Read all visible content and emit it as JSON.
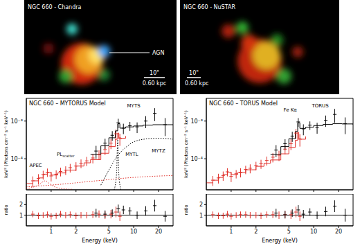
{
  "images": [
    {
      "title": "NGC 660 - Chandra",
      "label": "AGN",
      "scale_bar": [
        "10\"",
        "0.60 kpc"
      ]
    },
    {
      "title": "NGC 660 - NuSTAR",
      "scale_bar": [
        "10\"",
        "0.60 kpc"
      ]
    }
  ],
  "chart_data": [
    {
      "type": "scatter",
      "title": "NGC 660 – MYTORUS Model",
      "y_label": "keV² (Photons cm⁻² s⁻¹ keV⁻¹)",
      "log": true,
      "tick_labels": "y",
      "xlim": [
        0.5,
        30
      ],
      "xticks": [
        1,
        2,
        5,
        10,
        20
      ],
      "ylim": [
        1.5e-05,
        0.004
      ],
      "yticks": [
        {
          "value": 0.0001,
          "label": "10⁻⁴"
        },
        {
          "value": 0.001,
          "label": "10⁻³"
        }
      ],
      "series": [
        {
          "type": "scatter",
          "color": "#e0302a",
          "marker": "cross",
          "x": [
            0.6,
            0.7,
            0.8,
            0.9,
            1.0,
            1.15,
            1.3,
            1.5,
            1.7,
            2.0,
            2.3,
            2.7,
            3.2,
            3.8,
            4.5,
            5.3,
            6.1,
            6.8
          ],
          "values": [
            2.6e-05,
            3e-05,
            3.8e-05,
            4.4e-05,
            3.5e-05,
            3.9e-05,
            4.6e-05,
            5e-05,
            5.8e-05,
            6.4e-05,
            7.6e-05,
            8.8e-05,
            0.000105,
            0.00013,
            0.000175,
            0.00026,
            0.00046,
            0.00034
          ],
          "y_err": [
            8e-06,
            9e-06,
            1e-05,
            1.1e-05,
            1e-05,
            1e-05,
            1.2e-05,
            1.3e-05,
            1.5e-05,
            1.7e-05,
            2e-05,
            2.4e-05,
            3e-05,
            3.8e-05,
            5e-05,
            8e-05,
            0.00014,
            0.00012
          ]
        },
        {
          "type": "scatter",
          "color": "#000000",
          "marker": "cross",
          "x": [
            3.5,
            4.5,
            5.5,
            6.5,
            7.5,
            9,
            11,
            14,
            18,
            24
          ],
          "values": [
            0.00016,
            0.00026,
            0.00042,
            0.0009,
            0.00065,
            0.00075,
            0.0007,
            0.001,
            0.0016,
            0.0008
          ],
          "y_err": [
            6e-05,
            8e-05,
            0.00012,
            0.00025,
            0.0002,
            0.0002,
            0.00022,
            0.00035,
            0.0006,
            0.0004
          ]
        },
        {
          "type": "step",
          "line_style": "solid",
          "color": "#e0302a",
          "x": [
            0.5,
            0.6,
            0.7,
            0.8,
            0.9,
            1.0,
            1.2,
            1.5,
            2.0,
            2.5,
            3,
            4,
            5,
            6,
            6.4,
            6.6,
            7,
            8
          ],
          "values": [
            2.2e-05,
            2.6e-05,
            3.1e-05,
            3.9e-05,
            4.3e-05,
            3.7e-05,
            4.2e-05,
            5e-05,
            6.4e-05,
            7.8e-05,
            9.5e-05,
            0.00014,
            0.00021,
            0.00033,
            0.00048,
            0.00036,
            0.00035,
            0.0004
          ]
        },
        {
          "type": "step",
          "line_style": "solid",
          "color": "#000000",
          "x": [
            3,
            4,
            5,
            6,
            6.4,
            6.8,
            8,
            10,
            13,
            17,
            22,
            30
          ],
          "values": [
            0.00013,
            0.00022,
            0.00036,
            0.00055,
            0.00085,
            0.00065,
            0.0007,
            0.00074,
            0.00078,
            0.0008,
            0.0008,
            0.00078
          ]
        },
        {
          "type": "line",
          "line_style": "dotted",
          "color": "#000000",
          "x": [
            4,
            5,
            6,
            8,
            10,
            15,
            20,
            30
          ],
          "values": [
            2e-05,
            5e-05,
            0.0001,
            0.0002,
            0.00028,
            0.00034,
            0.00035,
            0.00033
          ]
        },
        {
          "type": "line",
          "line_style": "dotted",
          "color": "#000000",
          "x": [
            5.8,
            6.2,
            6.4,
            6.6,
            7
          ],
          "values": [
            1.5e-05,
            4e-05,
            0.00032,
            4e-05,
            1.5e-05
          ]
        },
        {
          "type": "line",
          "line_style": "dotted",
          "color": "#e0302a",
          "x": [
            0.5,
            0.7,
            0.85,
            0.95,
            1.1,
            1.4,
            1.8
          ],
          "values": [
            1.6e-05,
            2e-05,
            2.6e-05,
            2.2e-05,
            1.8e-05,
            1.6e-05,
            1.55e-05
          ]
        },
        {
          "type": "line",
          "line_style": "dotted",
          "color": "#e0302a",
          "x": [
            0.5,
            1,
            2,
            5,
            10,
            30
          ],
          "values": [
            1.8e-05,
            2e-05,
            2.3e-05,
            2.8e-05,
            3.2e-05,
            3.6e-05
          ]
        }
      ],
      "annotations": [
        {
          "text": "MYTS",
          "x": 10,
          "y": 0.0023
        },
        {
          "text": "PL",
          "sub": "scatter",
          "x": 1.5,
          "y": 0.00012
        },
        {
          "text": "APEC",
          "x": 0.65,
          "y": 6e-05
        },
        {
          "text": "MYTL",
          "x": 9.5,
          "y": 0.00012
        },
        {
          "text": "MYTZ",
          "x": 20,
          "y": 0.00015
        }
      ]
    },
    {
      "type": "scatter",
      "x_label": "Energy (keV)",
      "y_label": "ratio",
      "log": "x",
      "xlim": [
        0.5,
        30
      ],
      "xticks": [
        1,
        2,
        5,
        10,
        20
      ],
      "ylim": [
        0,
        3
      ],
      "yticks": [
        1,
        2
      ],
      "reference": 1,
      "series": [
        {
          "color": "#e0302a",
          "marker": "cross",
          "x": [
            0.6,
            0.7,
            0.8,
            0.9,
            1.0,
            1.15,
            1.3,
            1.5,
            1.7,
            2.0,
            2.3,
            2.7,
            3.2,
            3.8,
            4.5,
            5.3,
            6.1,
            6.8
          ],
          "values": [
            1.1,
            0.95,
            1.0,
            1.05,
            0.9,
            0.95,
            1.1,
            1.0,
            1.05,
            0.95,
            1.0,
            1.0,
            1.05,
            1.1,
            1.0,
            1.1,
            1.3,
            0.9
          ],
          "y_err": [
            0.3,
            0.3,
            0.28,
            0.3,
            0.3,
            0.28,
            0.3,
            0.3,
            0.3,
            0.3,
            0.3,
            0.3,
            0.32,
            0.35,
            0.35,
            0.4,
            0.5,
            0.45
          ]
        },
        {
          "color": "#000000",
          "marker": "cross",
          "x": [
            3.5,
            4.5,
            5.5,
            6.5,
            7.5,
            9,
            11,
            14,
            18,
            24
          ],
          "values": [
            1.2,
            1.1,
            1.2,
            1.6,
            1.5,
            1.4,
            1.0,
            1.4,
            1.9,
            0.9
          ],
          "y_err": [
            0.4,
            0.35,
            0.35,
            0.4,
            0.4,
            0.35,
            0.35,
            0.45,
            0.55,
            0.5
          ]
        }
      ]
    },
    {
      "type": "scatter",
      "title": "NGC 660 – TORUS Model",
      "y_label": "keV² (Photons cm⁻² s⁻¹ keV⁻¹)",
      "log": true,
      "tick_labels": "y",
      "xlim": [
        0.5,
        30
      ],
      "xticks": [
        1,
        2,
        5,
        10,
        20
      ],
      "ylim": [
        1.5e-05,
        0.004
      ],
      "yticks": [
        {
          "value": 0.0001,
          "label": "10⁻⁴"
        },
        {
          "value": 0.001,
          "label": "10⁻³"
        }
      ],
      "series": [
        {
          "type": "scatter",
          "color": "#e0302a",
          "marker": "cross",
          "x": [
            0.6,
            0.7,
            0.8,
            0.9,
            1.0,
            1.15,
            1.3,
            1.5,
            1.7,
            2.0,
            2.3,
            2.7,
            3.2,
            3.8,
            4.5,
            5.3,
            6.1,
            6.8
          ],
          "values": [
            2.7e-05,
            3.1e-05,
            3.6e-05,
            4.5e-05,
            3.4e-05,
            4e-05,
            4.4e-05,
            5.2e-05,
            5.6e-05,
            6.6e-05,
            7.4e-05,
            9e-05,
            0.00011,
            0.000125,
            0.00018,
            0.00025,
            0.00048,
            0.00033
          ],
          "y_err": [
            8e-06,
            9e-06,
            1e-05,
            1.1e-05,
            1e-05,
            1e-05,
            1.2e-05,
            1.3e-05,
            1.5e-05,
            1.7e-05,
            2e-05,
            2.4e-05,
            3e-05,
            3.8e-05,
            5e-05,
            8e-05,
            0.00014,
            0.00012
          ]
        },
        {
          "type": "scatter",
          "color": "#000000",
          "marker": "cross",
          "x": [
            3.5,
            4.5,
            5.5,
            6.5,
            7.5,
            9,
            11,
            14,
            18,
            24
          ],
          "values": [
            0.00017,
            0.00025,
            0.0004,
            0.00095,
            0.00062,
            0.00078,
            0.00068,
            0.00105,
            0.0015,
            0.00085
          ],
          "y_err": [
            6e-05,
            8e-05,
            0.00012,
            0.00025,
            0.0002,
            0.0002,
            0.00022,
            0.00035,
            0.0006,
            0.0004
          ]
        },
        {
          "type": "step",
          "line_style": "solid",
          "color": "#e0302a",
          "x": [
            0.5,
            0.6,
            0.7,
            0.8,
            0.9,
            1.0,
            1.2,
            1.5,
            2.0,
            2.5,
            3,
            4,
            5,
            6,
            6.4,
            6.6,
            7,
            8
          ],
          "values": [
            2.3e-05,
            2.7e-05,
            3.2e-05,
            3.8e-05,
            4.4e-05,
            3.8e-05,
            4.3e-05,
            5.1e-05,
            6.3e-05,
            7.6e-05,
            9.3e-05,
            0.000135,
            0.0002,
            0.00031,
            0.0005,
            0.00034,
            0.00033,
            0.00039
          ]
        },
        {
          "type": "step",
          "line_style": "solid",
          "color": "#000000",
          "x": [
            3,
            4,
            5,
            6,
            6.4,
            6.8,
            8,
            10,
            13,
            17,
            22,
            30
          ],
          "values": [
            0.00013,
            0.00021,
            0.00034,
            0.00053,
            0.0009,
            0.00064,
            0.00069,
            0.00076,
            0.00082,
            0.00085,
            0.00084,
            0.0008
          ]
        }
      ],
      "annotations": [
        {
          "text": "Fe Kα",
          "x": 5.2,
          "y": 0.0018
        },
        {
          "text": "TORUS",
          "x": 12,
          "y": 0.0023
        }
      ]
    },
    {
      "type": "scatter",
      "x_label": "Energy (keV)",
      "y_label": "ratio",
      "log": "x",
      "xlim": [
        0.5,
        30
      ],
      "xticks": [
        1,
        2,
        5,
        10,
        20
      ],
      "ylim": [
        0,
        3
      ],
      "yticks": [
        1,
        2
      ],
      "reference": 1,
      "series": [
        {
          "color": "#e0302a",
          "marker": "cross",
          "x": [
            0.6,
            0.7,
            0.8,
            0.9,
            1.0,
            1.15,
            1.3,
            1.5,
            1.7,
            2.0,
            2.3,
            2.7,
            3.2,
            3.8,
            4.5,
            5.3,
            6.1,
            6.8
          ],
          "values": [
            1.05,
            0.95,
            0.95,
            1.1,
            0.9,
            1.0,
            1.05,
            1.05,
            1.0,
            1.0,
            0.95,
            1.05,
            1.05,
            1.0,
            1.05,
            1.05,
            1.3,
            0.9
          ],
          "y_err": [
            0.3,
            0.3,
            0.28,
            0.3,
            0.3,
            0.28,
            0.3,
            0.3,
            0.3,
            0.3,
            0.3,
            0.3,
            0.32,
            0.35,
            0.35,
            0.4,
            0.5,
            0.45
          ]
        },
        {
          "color": "#000000",
          "marker": "cross",
          "x": [
            3.5,
            4.5,
            5.5,
            6.5,
            7.5,
            9,
            11,
            14,
            18,
            24
          ],
          "values": [
            1.2,
            1.05,
            1.2,
            1.5,
            1.1,
            1.3,
            1.0,
            1.35,
            1.85,
            1.0
          ],
          "y_err": [
            0.4,
            0.35,
            0.35,
            0.45,
            0.4,
            0.35,
            0.35,
            0.45,
            0.55,
            0.6
          ]
        }
      ]
    }
  ]
}
